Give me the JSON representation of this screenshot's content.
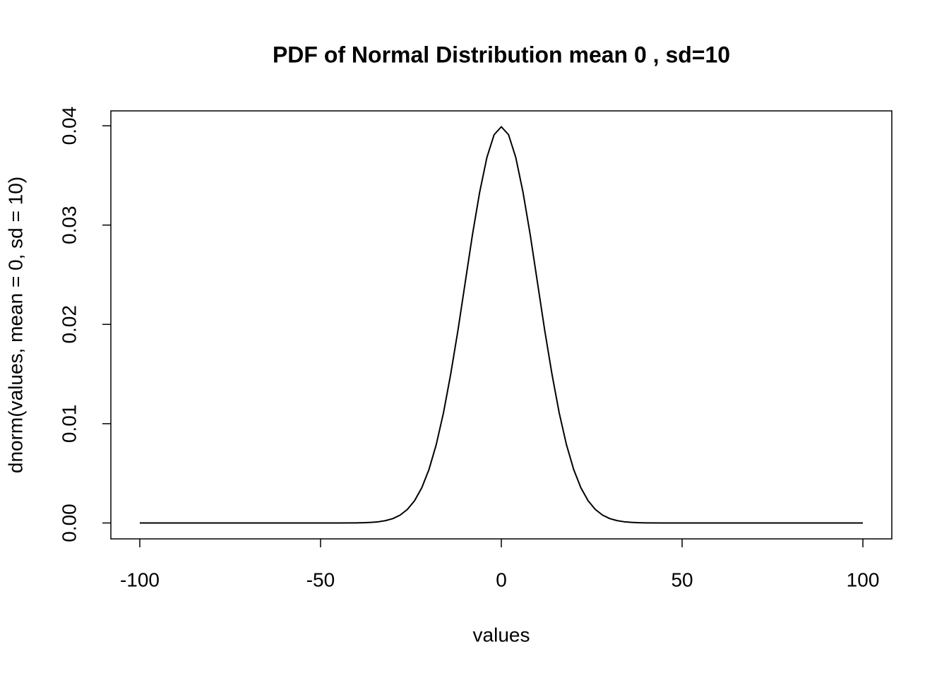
{
  "chart_data": {
    "type": "line",
    "title": "PDF of Normal Distribution mean 0 , sd=10",
    "x_label": "values",
    "y_label": "dnorm(values, mean = 0, sd = 10)",
    "x": [
      -100,
      -90,
      -80,
      -70,
      -60,
      -50,
      -45,
      -40,
      -38,
      -36,
      -34,
      -32,
      -30,
      -28,
      -26,
      -24,
      -22,
      -20,
      -18,
      -16,
      -14,
      -12,
      -10,
      -8,
      -6,
      -4,
      -2,
      0,
      2,
      4,
      6,
      8,
      10,
      12,
      14,
      16,
      18,
      20,
      22,
      24,
      26,
      28,
      30,
      32,
      34,
      36,
      38,
      40,
      45,
      50,
      60,
      70,
      80,
      90,
      100
    ],
    "series": [
      {
        "name": "dnorm",
        "color": "#000000",
        "values": [
          0,
          0,
          0,
          0,
          0,
          0,
          0,
          1e-05,
          3e-05,
          6e-05,
          0.00012,
          0.00024,
          0.00044,
          0.00079,
          0.00136,
          0.00224,
          0.00355,
          0.0054,
          0.0079,
          0.0111,
          0.015,
          0.0194,
          0.0242,
          0.029,
          0.0333,
          0.0368,
          0.0391,
          0.0399,
          0.0391,
          0.0368,
          0.0333,
          0.029,
          0.0242,
          0.0194,
          0.015,
          0.0111,
          0.0079,
          0.0054,
          0.00355,
          0.00224,
          0.00136,
          0.00079,
          0.00044,
          0.00024,
          0.00012,
          6e-05,
          3e-05,
          1e-05,
          0,
          0,
          0,
          0,
          0,
          0,
          0
        ]
      }
    ],
    "xlim": [
      -108,
      108
    ],
    "ylim": [
      -0.0016,
      0.0415
    ],
    "xticks": [
      -100,
      -50,
      0,
      50,
      100
    ],
    "yticks": [
      {
        "value": 0,
        "label": "0.00"
      },
      {
        "value": 0.01,
        "label": "0.01"
      },
      {
        "value": 0.02,
        "label": "0.02"
      },
      {
        "value": 0.03,
        "label": "0.03"
      },
      {
        "value": 0.04,
        "label": "0.04"
      }
    ]
  }
}
